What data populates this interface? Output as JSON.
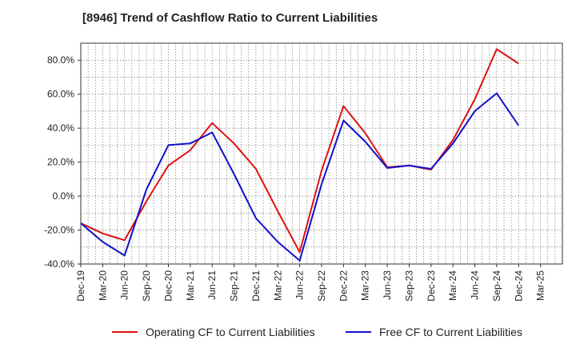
{
  "chart_data": {
    "type": "line",
    "title": "[8946]  Trend of Cashflow Ratio to Current Liabilities",
    "xlabel": "",
    "ylabel": "",
    "ylim": [
      -40,
      90
    ],
    "yticks": [
      -40,
      -20,
      0,
      20,
      40,
      60,
      80
    ],
    "ytick_labels": [
      "-40.0%",
      "-20.0%",
      "0.0%",
      "20.0%",
      "40.0%",
      "60.0%",
      "80.0%"
    ],
    "xtick_labels": [
      "Dec-19",
      "Mar-20",
      "Jun-20",
      "Sep-20",
      "Dec-20",
      "Mar-21",
      "Jun-21",
      "Sep-21",
      "Dec-21",
      "Mar-22",
      "Jun-22",
      "Sep-22",
      "Dec-22",
      "Mar-23",
      "Jun-23",
      "Sep-23",
      "Dec-23",
      "Mar-24",
      "Jun-24",
      "Sep-24",
      "Dec-24",
      "Mar-25"
    ],
    "grid": true,
    "legend_position": "bottom",
    "series": [
      {
        "name": "Operating CF to Current Liabilities",
        "color": "#dd1111",
        "points": [
          [
            "Dec-19",
            -16
          ],
          [
            "Mar-20",
            -22
          ],
          [
            "Jun-20",
            -26
          ],
          [
            "Sep-20",
            -3
          ],
          [
            "Dec-20",
            18
          ],
          [
            "Mar-21",
            27
          ],
          [
            "Jun-21",
            43
          ],
          [
            "Sep-21",
            31
          ],
          [
            "Dec-21",
            16
          ],
          [
            "Mar-22",
            -9
          ],
          [
            "Jun-22",
            -33
          ],
          [
            "Sep-22",
            15
          ],
          [
            "Dec-22",
            53
          ],
          [
            "Mar-23",
            37
          ],
          [
            "Jun-23",
            17
          ],
          [
            "Sep-23",
            18
          ],
          [
            "Dec-23",
            15.5
          ],
          [
            "Mar-24",
            33
          ],
          [
            "Jun-24",
            57
          ],
          [
            "Sep-24",
            86.5
          ],
          [
            "Dec-24",
            78
          ]
        ]
      },
      {
        "name": "Free CF to Current Liabilities",
        "color": "#1111cc",
        "points": [
          [
            "Dec-19",
            -16
          ],
          [
            "Mar-20",
            -27
          ],
          [
            "Jun-20",
            -35
          ],
          [
            "Sep-20",
            4
          ],
          [
            "Dec-20",
            30
          ],
          [
            "Mar-21",
            31
          ],
          [
            "Jun-21",
            37.5
          ],
          [
            "Sep-21",
            13
          ],
          [
            "Dec-21",
            -13
          ],
          [
            "Mar-22",
            -27
          ],
          [
            "Jun-22",
            -38
          ],
          [
            "Sep-22",
            7
          ],
          [
            "Dec-22",
            44.5
          ],
          [
            "Mar-23",
            32
          ],
          [
            "Jun-23",
            16.5
          ],
          [
            "Sep-23",
            18
          ],
          [
            "Dec-23",
            16
          ],
          [
            "Mar-24",
            31
          ],
          [
            "Jun-24",
            50
          ],
          [
            "Sep-24",
            60.5
          ],
          [
            "Dec-24",
            41.5
          ]
        ]
      }
    ]
  }
}
